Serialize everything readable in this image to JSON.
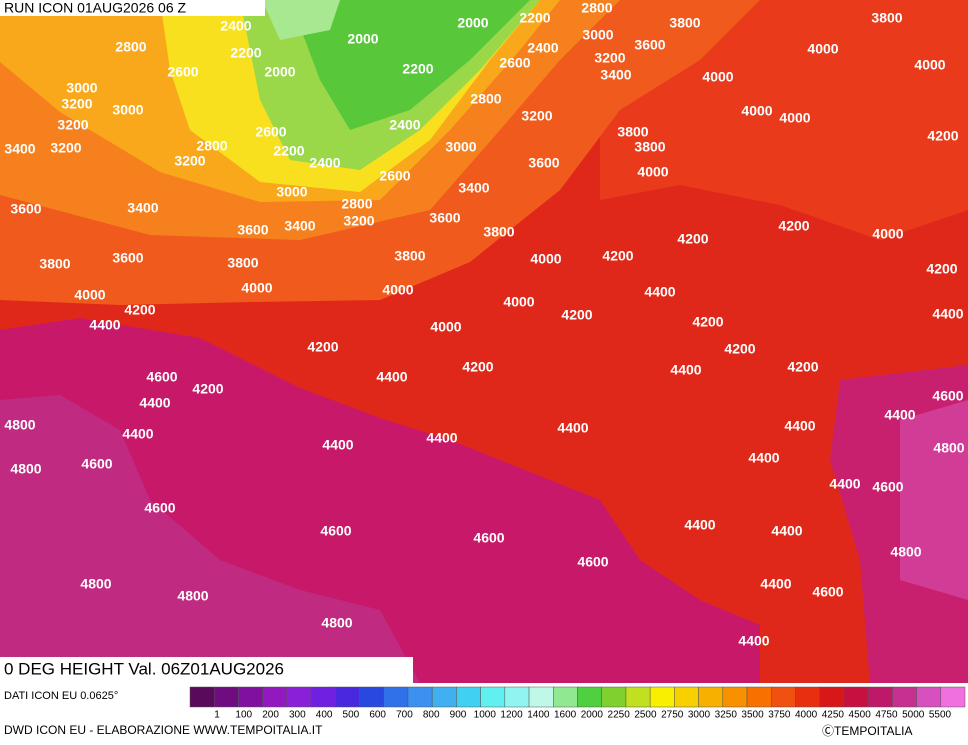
{
  "header": {
    "run": "RUN ICON 01AUG2026 06 Z",
    "field": "0 DEG HEIGHT Val. 06Z01AUG2026"
  },
  "footer": {
    "source": "DATI ICON EU 0.0625°",
    "credit": "DWD ICON EU - ELABORAZIONE WWW.TEMPOITALIA.IT",
    "copyright": "ⒸTEMPOITALIA"
  },
  "colorbar": {
    "colors": [
      "#5a0a5a",
      "#6e0c80",
      "#8010a0",
      "#9418c0",
      "#8a20d8",
      "#7020e0",
      "#4a28e0",
      "#2848e0",
      "#3070e8",
      "#3c90f0",
      "#40b0f0",
      "#40d0f0",
      "#60f0f0",
      "#90f4f0",
      "#c0f8e8",
      "#90e890",
      "#50d040",
      "#80d030",
      "#c0e020",
      "#f8f000",
      "#f8d000",
      "#f8b000",
      "#f89000",
      "#f87000",
      "#f05010",
      "#e83010",
      "#d81818",
      "#c81040",
      "#c01868",
      "#c83090",
      "#d850c0",
      "#f070e0"
    ],
    "labels": [
      1,
      100,
      200,
      300,
      400,
      500,
      600,
      700,
      800,
      900,
      1000,
      1200,
      1400,
      1600,
      2000,
      2250,
      2500,
      2750,
      3000,
      3250,
      3500,
      3750,
      4000,
      4250,
      4500,
      4750,
      5000,
      5500
    ]
  },
  "contour_labels": [
    2400,
    2000,
    2200,
    2800,
    3800,
    3800,
    2800,
    2200,
    2000,
    3000,
    3600,
    4000,
    3000,
    2600,
    2000,
    2200,
    2600,
    2400,
    3200,
    3400,
    4000,
    4000,
    3200,
    3000,
    2800,
    3200,
    4000,
    4000,
    3200,
    2600,
    2400,
    3800,
    4200,
    3400,
    3200,
    2800,
    2200,
    3000,
    3800,
    3200,
    2400,
    3600,
    4000,
    2600,
    3000,
    3400,
    3600,
    3400,
    2800,
    3200,
    3600,
    3600,
    3400,
    3800,
    4200,
    4000,
    4200,
    3800,
    3600,
    3800,
    3800,
    4000,
    4200,
    4200,
    4000,
    4000,
    4000,
    4400,
    4200,
    4000,
    4400,
    4200,
    4200,
    4400,
    4000,
    4200,
    4200,
    4600,
    4400,
    4200,
    4400,
    4200,
    4200,
    4400,
    4600,
    4800,
    4400,
    4400,
    4400,
    4400,
    4400,
    4400,
    4800,
    4800,
    4600,
    4400,
    4400,
    4600,
    4600,
    4600,
    4400,
    4400,
    4600,
    4800,
    4600,
    4800,
    4400,
    4600,
    4800,
    4800,
    4400
  ]
}
